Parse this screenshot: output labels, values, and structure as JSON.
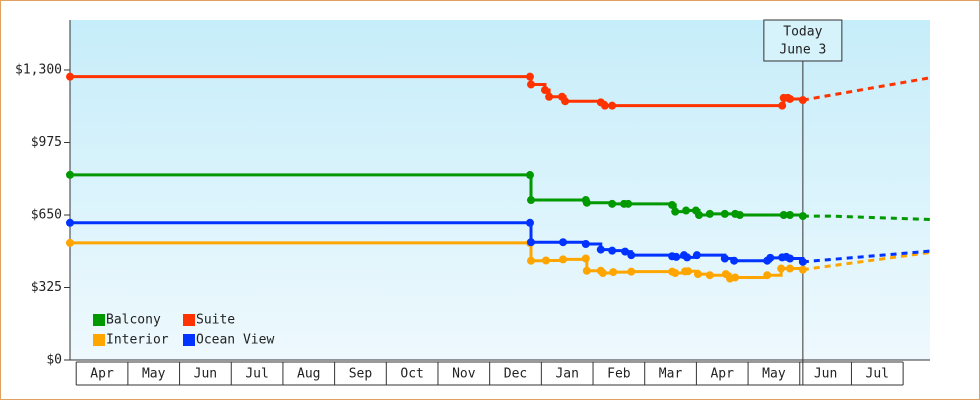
{
  "chart_data": {
    "type": "step-line",
    "categories": [
      "Apr",
      "May",
      "Jun",
      "Jul",
      "Aug",
      "Sep",
      "Oct",
      "Nov",
      "Dec",
      "Jan",
      "Feb",
      "Mar",
      "Apr",
      "May",
      "Jun",
      "Jul"
    ],
    "xlim": [
      -0.12,
      16.52
    ],
    "ylim": [
      0,
      1524
    ],
    "yticks": [
      {
        "value": 0,
        "label": "$0"
      },
      {
        "value": 325,
        "label": "$325"
      },
      {
        "value": 650,
        "label": "$650"
      },
      {
        "value": 975,
        "label": "$975"
      },
      {
        "value": 1300,
        "label": "$1,300"
      }
    ],
    "today": {
      "x": 14.06,
      "label": [
        "Today",
        "June 3"
      ]
    },
    "series": [
      {
        "name": "Balcony",
        "color": "#009900",
        "x": [
          -0.12,
          8.78,
          8.8,
          9.86,
          9.88,
          10.37,
          10.6,
          10.68,
          11.53,
          11.59,
          11.8,
          11.99,
          12.05,
          12.26,
          12.55,
          12.75,
          12.84,
          13.69,
          13.81,
          14.06
        ],
        "values": [
          830,
          829,
          717,
          717,
          705,
          700,
          700,
          700,
          695,
          665,
          670,
          670,
          650,
          655,
          655,
          655,
          650,
          650,
          650,
          645
        ],
        "forecast": {
          "x": [
            14.06,
            14.58,
            16.52
          ],
          "values": [
            645,
            645,
            630
          ]
        }
      },
      {
        "name": "Suite",
        "color": "#ff3300",
        "x": [
          -0.12,
          8.78,
          8.8,
          9.07,
          9.15,
          9.4,
          9.46,
          10.15,
          10.23,
          10.37,
          13.66,
          13.69,
          13.77,
          13.81,
          14.06
        ],
        "values": [
          1270,
          1270,
          1235,
          1210,
          1180,
          1180,
          1160,
          1155,
          1140,
          1140,
          1140,
          1175,
          1175,
          1170,
          1165
        ],
        "forecast": {
          "x": [
            14.06,
            16.52
          ],
          "values": [
            1165,
            1265
          ]
        }
      },
      {
        "name": "Interior",
        "color": "#ffa500",
        "x": [
          -0.12,
          8.78,
          8.8,
          9.09,
          9.42,
          9.86,
          9.88,
          10.15,
          10.19,
          10.39,
          10.74,
          11.53,
          11.59,
          11.78,
          11.84,
          12.03,
          12.26,
          12.57,
          12.65,
          12.75,
          13.37,
          13.64,
          13.81,
          14.06
        ],
        "values": [
          525,
          525,
          445,
          446,
          451,
          455,
          400,
          400,
          390,
          394,
          396,
          396,
          390,
          397,
          398,
          385,
          380,
          385,
          365,
          370,
          380,
          410,
          410,
          405
        ],
        "forecast": {
          "x": [
            14.06,
            16.52
          ],
          "values": [
            405,
            482
          ]
        }
      },
      {
        "name": "Ocean View",
        "color": "#0033ff",
        "x": [
          -0.12,
          8.78,
          8.8,
          9.42,
          9.86,
          10.15,
          10.37,
          10.62,
          10.74,
          11.53,
          11.61,
          11.76,
          11.82,
          12.01,
          12.55,
          12.73,
          13.37,
          13.43,
          13.66,
          13.74,
          13.81,
          14.06
        ],
        "values": [
          615,
          615,
          528,
          528,
          520,
          495,
          490,
          486,
          470,
          465,
          462,
          470,
          460,
          470,
          455,
          445,
          445,
          458,
          460,
          462,
          455,
          440
        ],
        "forecast": {
          "x": [
            14.06,
            16.52
          ],
          "values": [
            440,
            488
          ]
        }
      }
    ]
  }
}
